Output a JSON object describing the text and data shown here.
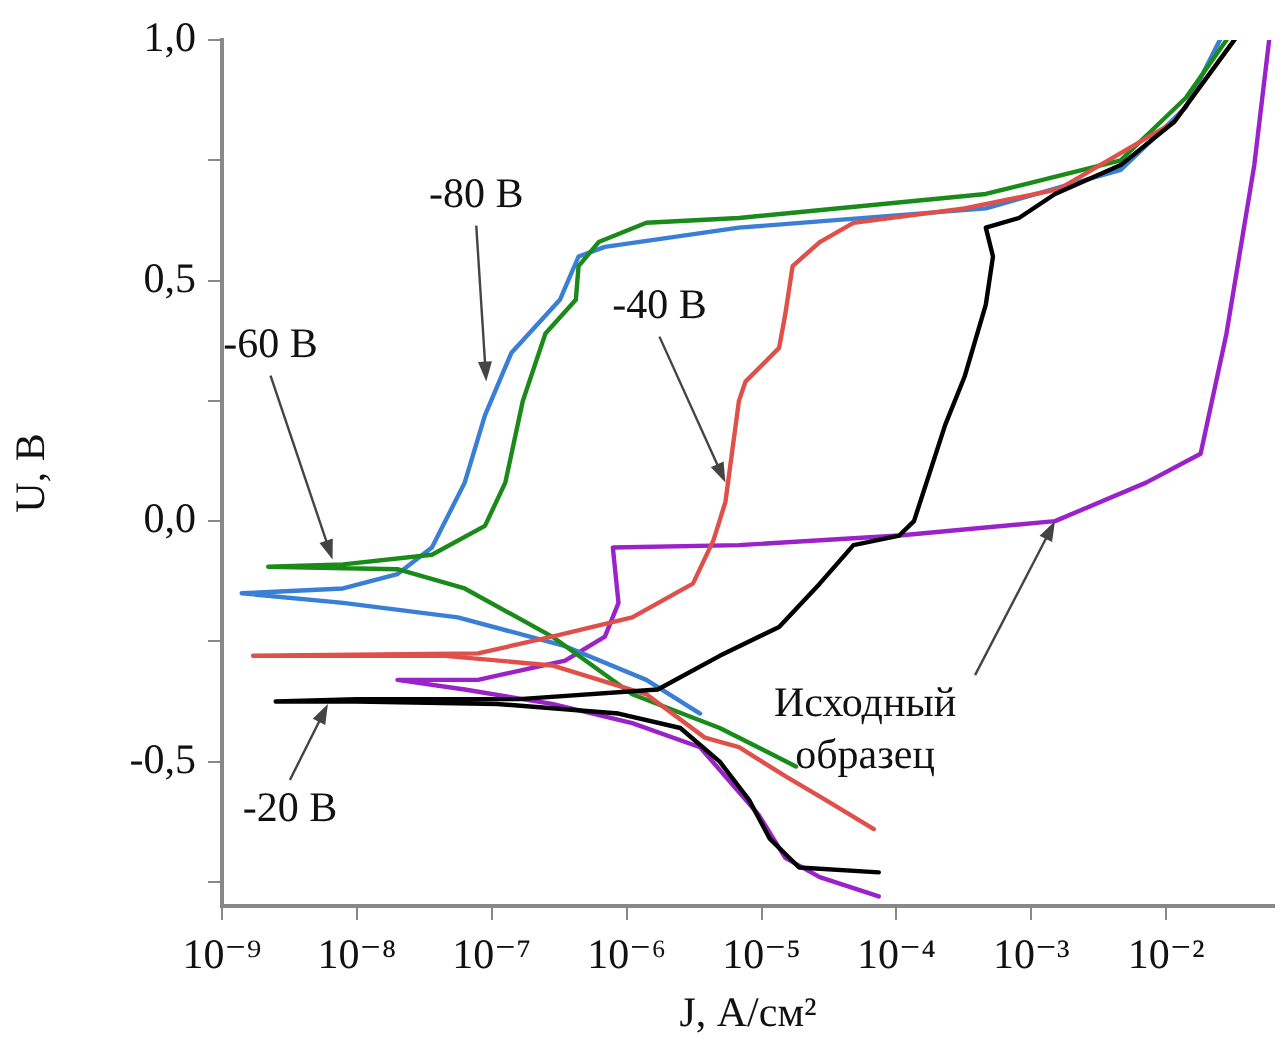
{
  "chart_data": {
    "type": "line",
    "xlabel": "J, А/см²",
    "ylabel": "U, В",
    "log": "x",
    "xlim": [
      1e-09,
      0.063
    ],
    "ylim": [
      -0.8,
      1.0
    ],
    "xticks": [
      {
        "value": 1e-09,
        "label": "10⁻⁹"
      },
      {
        "value": 1e-08,
        "label": "10⁻⁸"
      },
      {
        "value": 1e-07,
        "label": "10⁻⁷"
      },
      {
        "value": 1e-06,
        "label": "10⁻⁶"
      },
      {
        "value": 1e-05,
        "label": "10⁻⁵"
      },
      {
        "value": 0.0001,
        "label": "10⁻⁴"
      },
      {
        "value": 0.001,
        "label": "10⁻³"
      },
      {
        "value": 0.01,
        "label": "10⁻²"
      }
    ],
    "yticks": [
      {
        "value": -0.75,
        "label": null
      },
      {
        "value": -0.5,
        "label": "-0,5"
      },
      {
        "value": -0.25,
        "label": null
      },
      {
        "value": 0,
        "label": "0,0"
      },
      {
        "value": 0.25,
        "label": null
      },
      {
        "value": 0.5,
        "label": "0,5"
      },
      {
        "value": 0.75,
        "label": null
      },
      {
        "value": 1,
        "label": "1,0"
      }
    ],
    "series": [
      {
        "color": "#000000",
        "x": [
          7.4e-05,
          1.9e-05,
          1.15e-05,
          8.1e-06,
          4.9e-06,
          2.5e-06,
          8.7e-07,
          1.1e-07,
          1e-08,
          2.5e-09,
          1e-08,
          1.6e-07,
          1.7e-06,
          4.9e-06,
          1.35e-05,
          2.7e-05,
          4.8e-05,
          0.000105,
          0.000135,
          0.00023,
          0.00032,
          0.00046,
          0.00052,
          0.00046,
          0.00081,
          0.0015,
          0.0046,
          0.0115,
          0.032
        ],
        "values": [
          -0.73,
          -0.72,
          -0.66,
          -0.58,
          -0.5,
          -0.43,
          -0.4,
          -0.38,
          -0.375,
          -0.375,
          -0.37,
          -0.37,
          -0.35,
          -0.28,
          -0.22,
          -0.13,
          -0.05,
          -0.03,
          0,
          0.2,
          0.3,
          0.45,
          0.55,
          0.61,
          0.63,
          0.68,
          0.74,
          0.83,
          1.0
        ]
      },
      {
        "color": "#e0504a",
        "x": [
          6.8e-05,
          3e-05,
          1.5e-05,
          6.8e-06,
          3.8e-06,
          1.4e-06,
          2.8e-07,
          4.5e-08,
          1.7e-09,
          7.9e-08,
          2.8e-07,
          1.1e-06,
          3.1e-06,
          4.4e-06,
          5.4e-06,
          6.8e-06,
          7.6e-06,
          1.35e-05,
          1.5e-05,
          1.7e-05,
          2.7e-05,
          4.8e-05,
          0.00032,
          0.0016,
          0.0115,
          0.032
        ],
        "values": [
          -0.64,
          -0.58,
          -0.53,
          -0.47,
          -0.45,
          -0.36,
          -0.3,
          -0.28,
          -0.28,
          -0.275,
          -0.24,
          -0.2,
          -0.13,
          -0.04,
          0.04,
          0.25,
          0.29,
          0.36,
          0.43,
          0.53,
          0.58,
          0.62,
          0.65,
          0.69,
          0.83,
          1.0
        ]
      },
      {
        "color": "#1a8a1a",
        "x": [
          1.8e-05,
          4.9e-06,
          1.1e-06,
          2.8e-07,
          6.3e-08,
          2e-08,
          2.2e-09,
          7.9e-09,
          3.6e-08,
          8.9e-08,
          1.26e-07,
          1.7e-07,
          2.5e-07,
          4.2e-07,
          4.4e-07,
          6.2e-07,
          1.4e-06,
          6.8e-06,
          0.00046,
          0.0046,
          0.014,
          0.028
        ],
        "values": [
          -0.51,
          -0.43,
          -0.36,
          -0.24,
          -0.14,
          -0.1,
          -0.095,
          -0.09,
          -0.07,
          -0.01,
          0.08,
          0.25,
          0.39,
          0.46,
          0.53,
          0.58,
          0.62,
          0.63,
          0.68,
          0.75,
          0.88,
          1.0
        ]
      },
      {
        "color": "#3a7fd5",
        "x": [
          3.5e-06,
          1.4e-06,
          3.5e-07,
          5.6e-08,
          7.9e-09,
          1.4e-09,
          7.9e-09,
          2e-08,
          3.6e-08,
          6.3e-08,
          8.9e-08,
          1.4e-07,
          3.2e-07,
          4.4e-07,
          6.9e-07,
          6.8e-06,
          0.00046,
          0.0046,
          0.014,
          0.025
        ],
        "values": [
          -0.4,
          -0.33,
          -0.26,
          -0.2,
          -0.17,
          -0.15,
          -0.14,
          -0.11,
          -0.055,
          0.08,
          0.22,
          0.35,
          0.46,
          0.55,
          0.57,
          0.61,
          0.65,
          0.73,
          0.86,
          1.0
        ]
      },
      {
        "color": "#9a22c8",
        "x": [
          7.4e-05,
          2.7e-05,
          1.5e-05,
          9.5e-06,
          6.2e-06,
          3.5e-06,
          1.1e-06,
          2.8e-07,
          6.3e-08,
          2e-08,
          7.9e-08,
          3.5e-07,
          6.9e-07,
          8.7e-07,
          7.9e-07,
          6.8e-06,
          0.000105,
          0.0015,
          0.0071,
          0.018,
          0.028,
          0.045,
          0.058
        ],
        "values": [
          -0.78,
          -0.74,
          -0.7,
          -0.61,
          -0.55,
          -0.47,
          -0.42,
          -0.38,
          -0.35,
          -0.33,
          -0.33,
          -0.29,
          -0.24,
          -0.17,
          -0.055,
          -0.05,
          -0.03,
          0,
          0.08,
          0.14,
          0.39,
          0.74,
          1.0
        ]
      }
    ],
    "annotations": [
      {
        "text": "-80 В",
        "x": 9.1e-08,
        "y": 0.29
      },
      {
        "text": "-60 В",
        "x": 6.6e-09,
        "y": -0.08
      },
      {
        "text": "-40 В",
        "x": 5.4e-06,
        "y": 0.08
      },
      {
        "text": "-20 В",
        "x": 6.1e-09,
        "y": -0.38
      },
      {
        "text": "Исходный\nобразец",
        "x": 0.0015,
        "y": 0
      }
    ],
    "legend": false,
    "grid": false,
    "marker": "none",
    "line_style": "solid"
  }
}
